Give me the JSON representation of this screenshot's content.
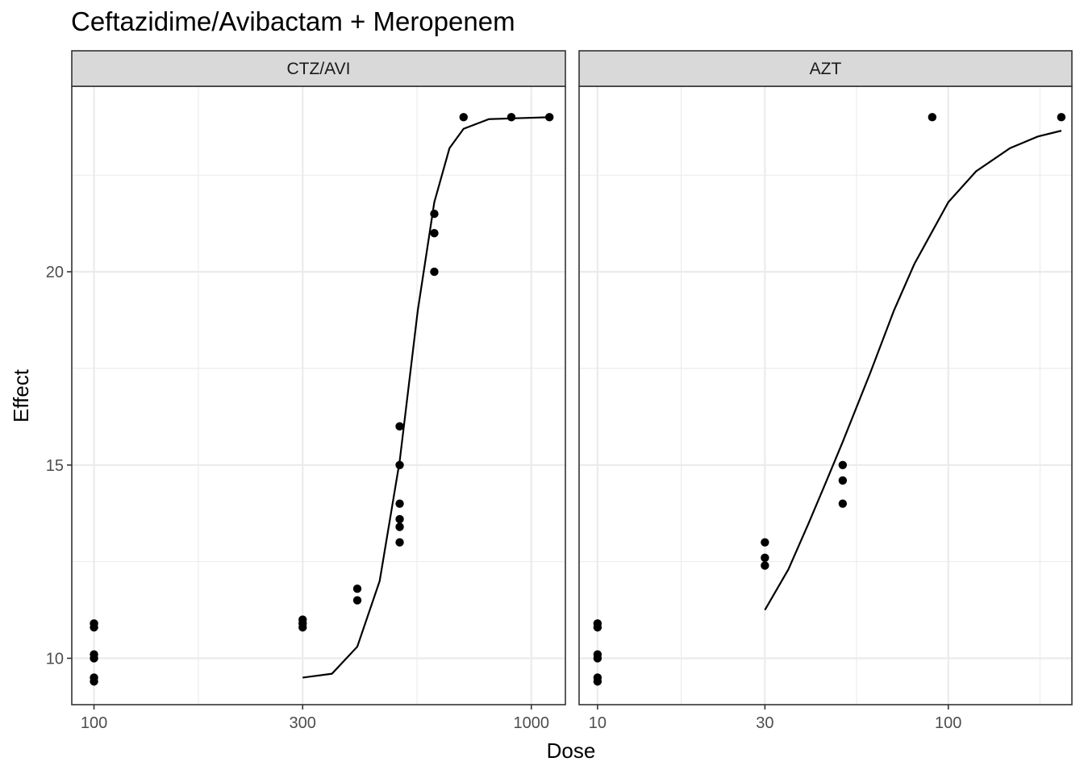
{
  "chart_data": {
    "type": "scatter",
    "title": "Ceftazidime/Avibactam + Meropenem",
    "xlabel": "Dose",
    "ylabel": "Effect",
    "x_scale": "log10",
    "grid": true,
    "legend": "none",
    "ylim": [
      8.8,
      24.8
    ],
    "y_ticks": [
      10,
      15,
      20
    ],
    "panels": [
      {
        "name": "CTZ/AVI",
        "xlim_log10": [
          1.9492,
          3.0779
        ],
        "x_ticks": [
          100,
          300,
          1000
        ],
        "points": [
          {
            "x": 100,
            "y": 10.9
          },
          {
            "x": 100,
            "y": 10.8
          },
          {
            "x": 100,
            "y": 10.1
          },
          {
            "x": 100,
            "y": 10.0
          },
          {
            "x": 100,
            "y": 9.5
          },
          {
            "x": 100,
            "y": 9.4
          },
          {
            "x": 300,
            "y": 11.0
          },
          {
            "x": 300,
            "y": 10.9
          },
          {
            "x": 300,
            "y": 10.8
          },
          {
            "x": 400,
            "y": 11.8
          },
          {
            "x": 400,
            "y": 11.5
          },
          {
            "x": 500,
            "y": 16.0
          },
          {
            "x": 500,
            "y": 15.0
          },
          {
            "x": 500,
            "y": 14.0
          },
          {
            "x": 500,
            "y": 13.6
          },
          {
            "x": 500,
            "y": 13.4
          },
          {
            "x": 500,
            "y": 13.0
          },
          {
            "x": 600,
            "y": 21.5
          },
          {
            "x": 600,
            "y": 21.0
          },
          {
            "x": 600,
            "y": 20.0
          },
          {
            "x": 700,
            "y": 24.0
          },
          {
            "x": 900,
            "y": 24.0
          },
          {
            "x": 1100,
            "y": 24.0
          }
        ],
        "curve": [
          {
            "x": 300,
            "y": 9.5
          },
          {
            "x": 350,
            "y": 9.6
          },
          {
            "x": 400,
            "y": 10.3
          },
          {
            "x": 450,
            "y": 12.0
          },
          {
            "x": 500,
            "y": 15.1
          },
          {
            "x": 550,
            "y": 19.0
          },
          {
            "x": 600,
            "y": 21.8
          },
          {
            "x": 650,
            "y": 23.2
          },
          {
            "x": 700,
            "y": 23.7
          },
          {
            "x": 800,
            "y": 23.95
          },
          {
            "x": 1100,
            "y": 24.0
          }
        ]
      },
      {
        "name": "AZT",
        "xlim_log10": [
          0.9474,
          2.3524
        ],
        "x_ticks": [
          10,
          30,
          100
        ],
        "points": [
          {
            "x": 10,
            "y": 10.9
          },
          {
            "x": 10,
            "y": 10.8
          },
          {
            "x": 10,
            "y": 10.1
          },
          {
            "x": 10,
            "y": 10.0
          },
          {
            "x": 10,
            "y": 9.5
          },
          {
            "x": 10,
            "y": 9.4
          },
          {
            "x": 30,
            "y": 13.0
          },
          {
            "x": 30,
            "y": 12.6
          },
          {
            "x": 30,
            "y": 12.4
          },
          {
            "x": 50,
            "y": 15.0
          },
          {
            "x": 50,
            "y": 14.6
          },
          {
            "x": 50,
            "y": 14.0
          },
          {
            "x": 90,
            "y": 24.0
          },
          {
            "x": 210,
            "y": 24.0
          }
        ],
        "curve": [
          {
            "x": 30,
            "y": 11.25
          },
          {
            "x": 35,
            "y": 12.3
          },
          {
            "x": 40,
            "y": 13.5
          },
          {
            "x": 45,
            "y": 14.6
          },
          {
            "x": 50,
            "y": 15.6
          },
          {
            "x": 60,
            "y": 17.4
          },
          {
            "x": 70,
            "y": 19.0
          },
          {
            "x": 80,
            "y": 20.2
          },
          {
            "x": 100,
            "y": 21.8
          },
          {
            "x": 120,
            "y": 22.6
          },
          {
            "x": 150,
            "y": 23.2
          },
          {
            "x": 180,
            "y": 23.5
          },
          {
            "x": 210,
            "y": 23.65
          }
        ]
      }
    ]
  }
}
